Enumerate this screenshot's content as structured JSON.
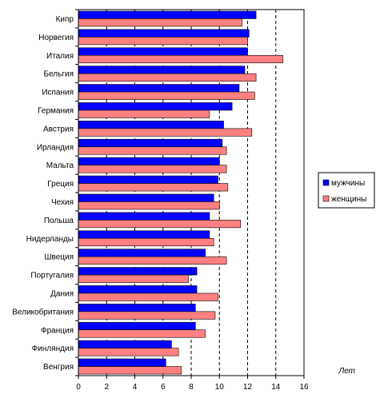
{
  "chart_data": {
    "type": "bar",
    "orientation": "horizontal",
    "categories": [
      "Кипр",
      "Норвегия",
      "Италия",
      "Бельгия",
      "Испания",
      "Германия",
      "Австрия",
      "Ирландия",
      "Мальта",
      "Греция",
      "Чехия",
      "Польша",
      "Нидерланды",
      "Швеция",
      "Португалия",
      "Дания",
      "Великобритания",
      "Франция",
      "Финляндия",
      "Венгрия"
    ],
    "series": [
      {
        "name": "мужчины",
        "color": "#0000ff",
        "values": [
          12.6,
          12.1,
          12.0,
          11.8,
          11.4,
          10.9,
          10.3,
          10.2,
          10.0,
          9.9,
          9.6,
          9.3,
          9.3,
          9.0,
          8.4,
          8.4,
          8.3,
          8.3,
          6.6,
          6.2
        ]
      },
      {
        "name": "женщины",
        "color": "#ff8080",
        "values": [
          11.6,
          12.0,
          14.5,
          12.6,
          12.5,
          9.3,
          12.3,
          10.5,
          10.5,
          10.6,
          10.0,
          11.5,
          9.6,
          10.5,
          7.8,
          9.9,
          9.7,
          9.0,
          7.1,
          7.3
        ]
      }
    ],
    "xlabel": "Лет",
    "xlim": [
      0,
      16
    ],
    "xticks": [
      0,
      2,
      4,
      6,
      8,
      10,
      12,
      14,
      16
    ],
    "grid": "vertical dashed lines at major ticks",
    "legend_position": "right"
  }
}
